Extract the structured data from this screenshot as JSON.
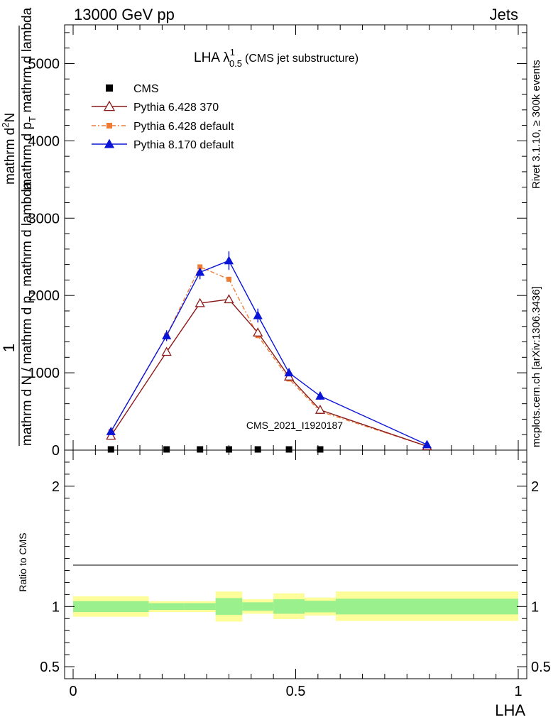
{
  "header": {
    "left": "13000 GeV pp",
    "right": "Jets"
  },
  "side_labels": {
    "rivet": "Rivet 3.1.10, ≥ 300k events",
    "mcplots": "mcplots.cern.ch [arXiv:1306.3436]"
  },
  "title": {
    "main": "LHA λ",
    "superscript": "1",
    "subscript": "0.5",
    "note": "(CMS jet substructure)"
  },
  "watermark": "CMS_2021_I1920187",
  "y_label_main": {
    "prefix": "1",
    "line1": "mathrm d N / mathrm d p",
    "sub1": "T",
    "line1_tail": " mathrm d lambda",
    "line2": "mathrm d",
    "sup2": "2",
    "line2_tail": "N",
    "line3": "mathrm d p",
    "sub3": "T",
    "line3_tail": " mathrm d lambda"
  },
  "y_label_ratio": "Ratio to CMS",
  "x_label": "LHA",
  "colors": {
    "cms": "#000000",
    "pythia6_370": "#8b1a1a",
    "pythia6_default": "#f07c34",
    "pythia8": "#0a14d6",
    "band_inner": "#99f08c",
    "band_outer": "#fdfd9a"
  },
  "chart_data": [
    {
      "type": "line",
      "panel": "main",
      "xlim": [
        0,
        1
      ],
      "ylim": [
        0,
        5500
      ],
      "y_ticks": [
        0,
        1000,
        2000,
        3000,
        4000,
        5000
      ],
      "y_tick_labels": [
        "0",
        "1000",
        "2000",
        "3000",
        "4000",
        "5000"
      ],
      "x_ticks": [
        0,
        0.5,
        1
      ],
      "bin_edges": [
        0,
        0.17,
        0.25,
        0.32,
        0.38,
        0.45,
        0.52,
        0.59,
        1.0
      ],
      "series": [
        {
          "name": "CMS",
          "marker": "square",
          "x": [
            0.085,
            0.21,
            0.285,
            0.35,
            0.415,
            0.485,
            0.555,
            0.795
          ],
          "y": [
            0,
            0,
            0,
            0,
            0,
            0,
            0,
            0
          ],
          "visible_x": [
            0.085,
            0.21,
            0.285,
            0.35,
            0.415,
            0.485,
            0.555
          ]
        },
        {
          "name": "Pythia 6.428 370",
          "marker": "open-triangle",
          "line": "solid",
          "x": [
            0.085,
            0.21,
            0.285,
            0.35,
            0.415,
            0.485,
            0.555,
            0.795
          ],
          "y": [
            185,
            1270,
            1900,
            1950,
            1520,
            950,
            520,
            50
          ],
          "err": [
            0,
            0,
            0,
            0,
            0,
            0,
            0,
            0
          ]
        },
        {
          "name": "Pythia 6.428 default",
          "marker": "square",
          "line": "dashdot",
          "x": [
            0.085,
            0.21,
            0.285,
            0.35,
            0.415,
            0.485,
            0.555,
            0.795
          ],
          "y": [
            240,
            1480,
            2370,
            2210,
            1480,
            920,
            500,
            50
          ],
          "err": [
            0,
            0,
            0,
            0,
            0,
            0,
            0,
            0
          ]
        },
        {
          "name": "Pythia 8.170 default",
          "marker": "filled-triangle",
          "line": "solid",
          "x": [
            0.085,
            0.21,
            0.285,
            0.35,
            0.415,
            0.485,
            0.555,
            0.795
          ],
          "y": [
            240,
            1480,
            2300,
            2450,
            1740,
            1000,
            700,
            70
          ],
          "err": [
            0,
            70,
            90,
            120,
            90,
            60,
            50,
            10
          ]
        }
      ]
    },
    {
      "type": "area",
      "panel": "ratio",
      "ylim": [
        0.4,
        2.3
      ],
      "y_ticks": [
        0.5,
        1,
        2
      ],
      "y_tick_labels": [
        "0.5",
        "1",
        "2"
      ],
      "x_ticks": [
        0,
        0.5,
        1
      ],
      "x_tick_labels": [
        "0",
        "0.5",
        "1"
      ],
      "reference_line": 1,
      "bins": [
        {
          "x0": 0.0,
          "x1": 0.17,
          "inner": [
            0.955,
            1.045
          ],
          "outer": [
            0.915,
            1.085
          ]
        },
        {
          "x0": 0.17,
          "x1": 0.25,
          "inner": [
            0.972,
            1.028
          ],
          "outer": [
            0.955,
            1.045
          ]
        },
        {
          "x0": 0.25,
          "x1": 0.32,
          "inner": [
            0.972,
            1.028
          ],
          "outer": [
            0.955,
            1.045
          ]
        },
        {
          "x0": 0.32,
          "x1": 0.38,
          "inner": [
            0.93,
            1.07
          ],
          "outer": [
            0.875,
            1.125
          ]
        },
        {
          "x0": 0.38,
          "x1": 0.45,
          "inner": [
            0.965,
            1.035
          ],
          "outer": [
            0.94,
            1.06
          ]
        },
        {
          "x0": 0.45,
          "x1": 0.52,
          "inner": [
            0.94,
            1.06
          ],
          "outer": [
            0.895,
            1.11
          ]
        },
        {
          "x0": 0.52,
          "x1": 0.59,
          "inner": [
            0.952,
            1.048
          ],
          "outer": [
            0.925,
            1.075
          ]
        },
        {
          "x0": 0.59,
          "x1": 1.0,
          "inner": [
            0.935,
            1.065
          ],
          "outer": [
            0.88,
            1.125
          ]
        }
      ]
    }
  ]
}
